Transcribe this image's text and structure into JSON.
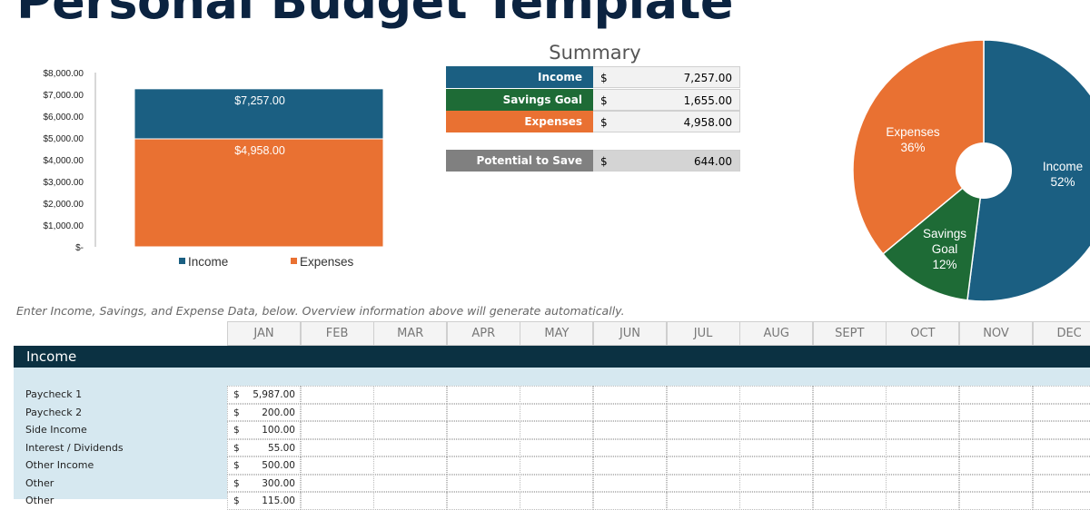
{
  "title": "Personal Budget Template",
  "summary": {
    "title": "Summary",
    "rows": [
      {
        "label": "Income",
        "currency": "$",
        "value": "7,257.00",
        "color": "#1b5f82"
      },
      {
        "label": "Savings Goal",
        "currency": "$",
        "value": "1,655.00",
        "color": "#1e6b36"
      },
      {
        "label": "Expenses",
        "currency": "$",
        "value": "4,958.00",
        "color": "#e97132"
      }
    ],
    "potential": {
      "label": "Potential to Save",
      "currency": "$",
      "value": "644.00",
      "color": "#808080"
    }
  },
  "chart_data": [
    {
      "type": "bar",
      "stacking": "overlapped",
      "ylim": [
        0,
        8000
      ],
      "yticks": [
        "$-",
        "$1,000.00",
        "$2,000.00",
        "$3,000.00",
        "$4,000.00",
        "$5,000.00",
        "$6,000.00",
        "$7,000.00",
        "$8,000.00"
      ],
      "series": [
        {
          "name": "Income",
          "value": 7257,
          "label": "$7,257.00",
          "color": "#1b5f82"
        },
        {
          "name": "Expenses",
          "value": 4958,
          "label": "$4,958.00",
          "color": "#e97132"
        }
      ],
      "legend": "bottom"
    },
    {
      "type": "pie",
      "donut": true,
      "slices": [
        {
          "name": "Income",
          "pct": 52,
          "label": "52%",
          "color": "#1b5f82"
        },
        {
          "name": "Savings Goal",
          "pct": 12,
          "label": "12%",
          "color": "#1e6b36"
        },
        {
          "name": "Expenses",
          "pct": 36,
          "label": "36%",
          "color": "#e97132"
        }
      ]
    }
  ],
  "note": "Enter Income, Savings, and Expense Data, below.  Overview information above will generate automatically.",
  "months": [
    "JAN",
    "FEB",
    "MAR",
    "APR",
    "MAY",
    "JUN",
    "JUL",
    "AUG",
    "SEPT",
    "OCT",
    "NOV",
    "DEC"
  ],
  "income": {
    "title": "Income",
    "rows": [
      {
        "label": "Paycheck 1",
        "jan": "5,987.00"
      },
      {
        "label": "Paycheck 2",
        "jan": "200.00"
      },
      {
        "label": "Side Income",
        "jan": "100.00"
      },
      {
        "label": "Interest / Dividends",
        "jan": "55.00"
      },
      {
        "label": "Other Income",
        "jan": "500.00"
      },
      {
        "label": "Other",
        "jan": "300.00"
      },
      {
        "label": "Other",
        "jan": "115.00"
      }
    ],
    "currency": "$"
  }
}
